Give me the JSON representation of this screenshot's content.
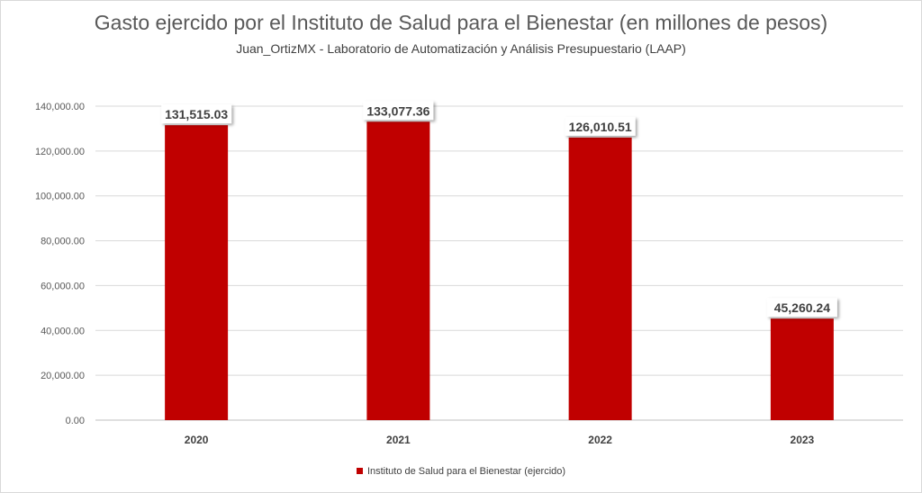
{
  "chart_data": {
    "type": "bar",
    "title": "Gasto ejercido por el Instituto de Salud para el Bienestar (en millones de pesos)",
    "subtitle": "Juan_OrtizMX  - Laboratorio de Automatización y Análisis Presupuestario (LAAP)",
    "categories": [
      "2020",
      "2021",
      "2022",
      "2023"
    ],
    "series": [
      {
        "name": "Instituto de Salud para el Bienestar (ejercido)",
        "values": [
          131515.03,
          133077.36,
          126010.51,
          45260.24
        ],
        "labels": [
          "131,515.03",
          "133,077.36",
          "126,010.51",
          "45,260.24"
        ],
        "color": "#c00000"
      }
    ],
    "ylim": [
      0,
      140000
    ],
    "yticks": [
      0,
      20000,
      40000,
      60000,
      80000,
      100000,
      120000,
      140000
    ],
    "ytick_labels": [
      "0.00",
      "20,000.00",
      "40,000.00",
      "60,000.00",
      "80,000.00",
      "100,000.00",
      "120,000.00",
      "140,000.00"
    ],
    "grid": true,
    "legend_position": "bottom"
  }
}
